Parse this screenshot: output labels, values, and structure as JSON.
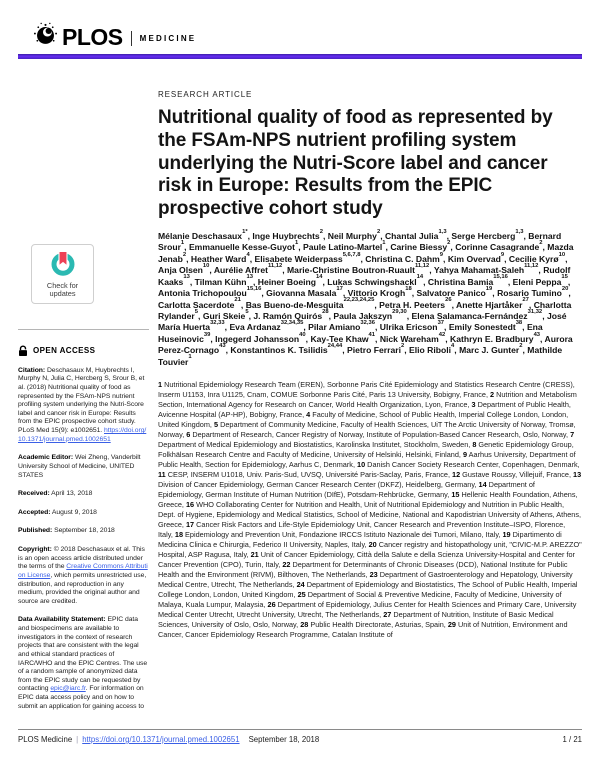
{
  "colors": {
    "accent_bar": "#5527d8",
    "link": "#3a5fe6",
    "crossmark_teal": "#2bb9b2",
    "crossmark_red": "#ee4056"
  },
  "header": {
    "logo_plos": "PLOS",
    "logo_journal": "MEDICINE"
  },
  "article": {
    "kicker": "RESEARCH ARTICLE",
    "title": "Nutritional quality of food as represented by the FSAm-NPS nutrient profiling system underlying the Nutri-Score label and cancer risk in Europe: Results from the EPIC prospective cohort study",
    "authors": [
      {
        "name": "Mélanie Deschasaux",
        "sup": "1*"
      },
      {
        "name": "Inge Huybrechts",
        "sup": "2"
      },
      {
        "name": "Neil Murphy",
        "sup": "2"
      },
      {
        "name": "Chantal Julia",
        "sup": "1,3"
      },
      {
        "name": "Serge Hercberg",
        "sup": "1,3"
      },
      {
        "name": "Bernard Srour",
        "sup": "1"
      },
      {
        "name": "Emmanuelle Kesse-Guyot",
        "sup": "1"
      },
      {
        "name": "Paule Latino-Martel",
        "sup": "1"
      },
      {
        "name": "Carine Biessy",
        "sup": "2"
      },
      {
        "name": "Corinne Casagrande",
        "sup": "2"
      },
      {
        "name": "Mazda Jenab",
        "sup": "2"
      },
      {
        "name": "Heather Ward",
        "sup": "4"
      },
      {
        "name": "Elisabete Weiderpass",
        "sup": "5,6,7,8"
      },
      {
        "name": "Christina C. Dahm",
        "sup": "9"
      },
      {
        "name": "Kim Overvad",
        "sup": "9"
      },
      {
        "name": "Cecilie Kyrø",
        "sup": "10"
      },
      {
        "name": "Anja Olsen",
        "sup": "10"
      },
      {
        "name": "Aurélie Affret",
        "sup": "11,12"
      },
      {
        "name": "Marie-Christine Boutron-Ruault",
        "sup": "11,12"
      },
      {
        "name": "Yahya Mahamat-Saleh",
        "sup": "11,12"
      },
      {
        "name": "Rudolf Kaaks",
        "sup": "13"
      },
      {
        "name": "Tilman Kühn",
        "sup": "13"
      },
      {
        "name": "Heiner Boeing",
        "sup": "14"
      },
      {
        "name": "Lukas Schwingshackl",
        "sup": "14"
      },
      {
        "name": "Christina Bamia",
        "sup": "15,16"
      },
      {
        "name": "Eleni Peppa",
        "sup": "15"
      },
      {
        "name": "Antonia Trichopoulou",
        "sup": "15,16"
      },
      {
        "name": "Giovanna Masala",
        "sup": "17"
      },
      {
        "name": "Vittorio Krogh",
        "sup": "18"
      },
      {
        "name": "Salvatore Panico",
        "sup": "19"
      },
      {
        "name": "Rosario Tumino",
        "sup": "20"
      },
      {
        "name": "Carlotta Sacerdote",
        "sup": "21"
      },
      {
        "name": "Bas Bueno-de-Mesquita",
        "sup": "22,23,24,25"
      },
      {
        "name": "Petra H. Peeters",
        "sup": "26"
      },
      {
        "name": "Anette Hjartåker",
        "sup": "27"
      },
      {
        "name": "Charlotta Rylander",
        "sup": "5"
      },
      {
        "name": "Guri Skeie",
        "sup": "5"
      },
      {
        "name": "J. Ramón Quirós",
        "sup": "28"
      },
      {
        "name": "Paula Jakszyn",
        "sup": "29,30"
      },
      {
        "name": "Elena Salamanca-Fernández",
        "sup": "31,32"
      },
      {
        "name": "José María Huerta",
        "sup": "32,33"
      },
      {
        "name": "Eva Ardanaz",
        "sup": "32,34,35"
      },
      {
        "name": "Pilar Amiano",
        "sup": "32,36"
      },
      {
        "name": "Ulrika Ericson",
        "sup": "37"
      },
      {
        "name": "Emily Sonestedt",
        "sup": "38"
      },
      {
        "name": "Ena Huseinovic",
        "sup": "39"
      },
      {
        "name": "Ingegerd Johansson",
        "sup": "40"
      },
      {
        "name": "Kay-Tee Khaw",
        "sup": "41"
      },
      {
        "name": "Nick Wareham",
        "sup": "42"
      },
      {
        "name": "Kathryn E. Bradbury",
        "sup": "43"
      },
      {
        "name": "Aurora Perez-Cornago",
        "sup": "43"
      },
      {
        "name": "Konstantinos K. Tsilidis",
        "sup": "24,44"
      },
      {
        "name": "Pietro Ferrari",
        "sup": "2"
      },
      {
        "name": "Elio Riboli",
        "sup": "4"
      },
      {
        "name": "Marc J. Gunter",
        "sup": "2"
      },
      {
        "name": "Mathilde Touvier",
        "sup": "1"
      }
    ],
    "affiliations": [
      {
        "n": "1",
        "t": "Nutritional Epidemiology Research Team (EREN), Sorbonne Paris Cité Epidemiology and Statistics Research Centre (CRESS), Inserm U1153, Inra U1125, Cnam, COMUE Sorbonne Paris Cité, Paris 13 University, Bobigny, France,"
      },
      {
        "n": "2",
        "t": "Nutrition and Metabolism Section, International Agency for Research on Cancer, World Health Organization, Lyon, France,"
      },
      {
        "n": "3",
        "t": "Department of Public Health, Avicenne Hospital (AP-HP), Bobigny, France,"
      },
      {
        "n": "4",
        "t": "Faculty of Medicine, School of Public Health, Imperial College London, London, United Kingdom,"
      },
      {
        "n": "5",
        "t": "Department of Community Medicine, Faculty of Health Sciences, UiT The Arctic University of Norway, Tromsø, Norway,"
      },
      {
        "n": "6",
        "t": "Department of Research, Cancer Registry of Norway, Institute of Population-Based Cancer Research, Oslo, Norway,"
      },
      {
        "n": "7",
        "t": "Department of Medical Epidemiology and Biostatistics, Karolinska Institutet, Stockholm, Sweden,"
      },
      {
        "n": "8",
        "t": "Genetic Epidemiology Group, Folkhälsan Research Centre and Faculty of Medicine, University of Helsinki, Helsinki, Finland,"
      },
      {
        "n": "9",
        "t": "Aarhus University, Department of Public Health, Section for Epidemiology, Aarhus C, Denmark,"
      },
      {
        "n": "10",
        "t": "Danish Cancer Society Research Center, Copenhagen, Denmark,"
      },
      {
        "n": "11",
        "t": "CESP, INSERM U1018, Univ. Paris-Sud, UVSQ, Université Paris-Saclay, Paris, France,"
      },
      {
        "n": "12",
        "t": "Gustave Roussy, Villejuif, France,"
      },
      {
        "n": "13",
        "t": "Division of Cancer Epidemiology, German Cancer Research Center (DKFZ), Heidelberg, Germany,"
      },
      {
        "n": "14",
        "t": "Department of Epidemiology, German Institute of Human Nutrition (DIfE), Potsdam-Rehbrücke, Germany,"
      },
      {
        "n": "15",
        "t": "Hellenic Health Foundation, Athens, Greece,"
      },
      {
        "n": "16",
        "t": "WHO Collaborating Center for Nutrition and Health, Unit of Nutritional Epidemiology and Nutrition in Public Health, Dept. of Hygiene, Epidemiology and Medical Statistics, School of Medicine, National and Kapodistrian University of Athens, Athens, Greece,"
      },
      {
        "n": "17",
        "t": "Cancer Risk Factors and Life-Style Epidemiology Unit, Cancer Research and Prevention Institute–ISPO, Florence, Italy,"
      },
      {
        "n": "18",
        "t": "Epidemiology and Prevention Unit, Fondazione IRCCS Istituto Nazionale dei Tumori, Milano, Italy,"
      },
      {
        "n": "19",
        "t": "Dipartimento di Medicina Clinica e Chirurgia, Federico II University, Naples, Italy,"
      },
      {
        "n": "20",
        "t": "Cancer registry and histopathology unit, \"CIVIC-M.P. AREZZO\" Hospital, ASP Ragusa, Italy,"
      },
      {
        "n": "21",
        "t": "Unit of Cancer Epidemiology, Città della Salute e della Scienza University-Hospital and Center for Cancer Prevention (CPO), Turin, Italy,"
      },
      {
        "n": "22",
        "t": "Department for Determinants of Chronic Diseases (DCD), National Institute for Public Health and the Environment (RIVM), Bilthoven, The Netherlands,"
      },
      {
        "n": "23",
        "t": "Department of Gastroenterology and Hepatology, University Medical Centre, Utrecht, The Netherlands,"
      },
      {
        "n": "24",
        "t": "Department of Epidemiology and Biostatistics, The School of Public Health, Imperial College London, London, United Kingdom,"
      },
      {
        "n": "25",
        "t": "Department of Social & Preventive Medicine, Faculty of Medicine, University of Malaya, Kuala Lumpur, Malaysia,"
      },
      {
        "n": "26",
        "t": "Department of Epidemiology, Julius Center for Health Sciences and Primary Care, University Medical Center Utrecht, Utrecht University, Utrecht, The Netherlands,"
      },
      {
        "n": "27",
        "t": "Department of Nutrition, Institute of Basic Medical Sciences, University of Oslo, Oslo, Norway,"
      },
      {
        "n": "28",
        "t": "Public Health Directorate, Asturias, Spain,"
      },
      {
        "n": "29",
        "t": "Unit of Nutrition, Environment and Cancer, Cancer Epidemiology Research Programme, Catalan Institute of"
      }
    ]
  },
  "sidebar": {
    "crossmark_label": "Check for updates",
    "open_access_label": "OPEN ACCESS",
    "citation": {
      "label": "Citation:",
      "text": "Deschasaux M, Huybrechts I, Murphy N, Julia C, Hercberg S, Srour B, et al. (2018) Nutritional quality of food as represented by the FSAm-NPS nutrient profiling system underlying the Nutri-Score label and cancer risk in Europe: Results from the EPIC prospective cohort study. PLoS Med 15(9): e1002651. ",
      "link": "https://doi.org/10.1371/journal.pmed.1002651"
    },
    "academic_editor": {
      "label": "Academic Editor:",
      "text": "Wei Zheng, Vanderbilt University School of Medicine, UNITED STATES"
    },
    "received": {
      "label": "Received:",
      "text": "April 13, 2018"
    },
    "accepted": {
      "label": "Accepted:",
      "text": "August 9, 2018"
    },
    "published": {
      "label": "Published:",
      "text": "September 18, 2018"
    },
    "copyright": {
      "label": "Copyright:",
      "pre": "© 2018 Deschasaux et al. This is an open access article distributed under the terms of the ",
      "link": "Creative Commons Attribution License",
      "post": ", which permits unrestricted use, distribution, and reproduction in any medium, provided the original author and source are credited."
    },
    "data_availability": {
      "label": "Data Availability Statement:",
      "pre": "EPIC data and biospecimens are available to investigators in the context of research projects that are consistent with the legal and ethical standard practices of IARC/WHO and the EPIC Centres. The use of a random sample of anonymized data from the EPIC study can be requested by contacting ",
      "link": "epic@iarc.fr",
      "post": ". For information on EPIC data access policy and on how to submit an application for gaining access to"
    }
  },
  "footer": {
    "journal": "PLOS Medicine",
    "doi_link": "https://doi.org/10.1371/journal.pmed.1002651",
    "date": "September 18, 2018",
    "page_number": "1 / 21"
  }
}
